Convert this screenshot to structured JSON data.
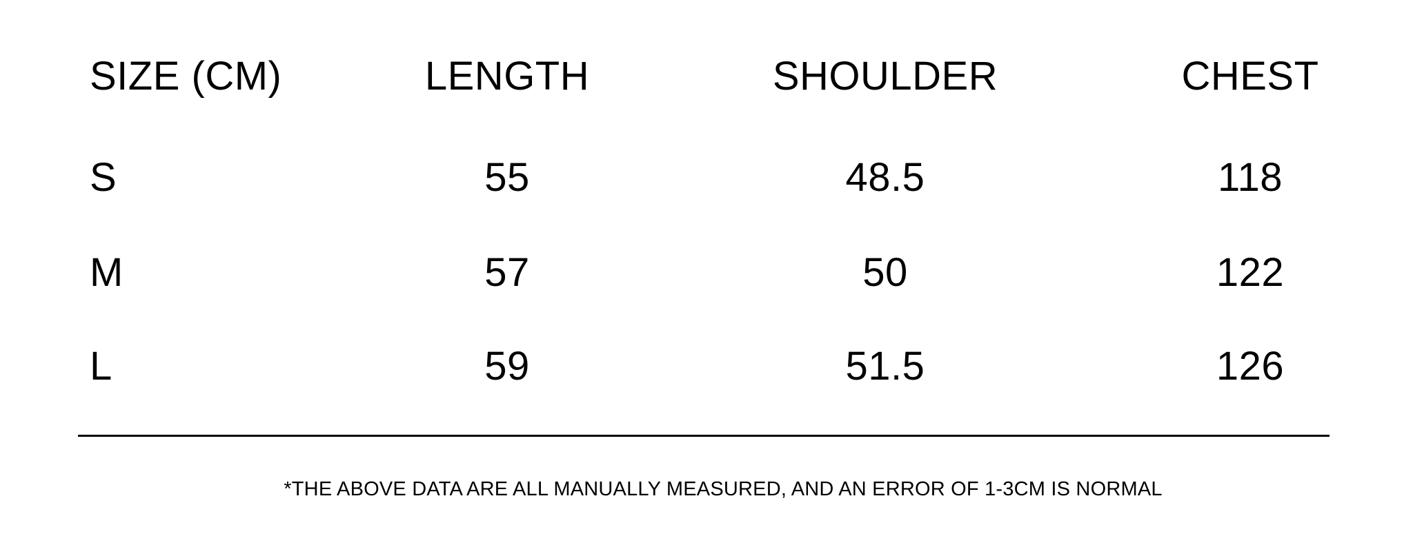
{
  "colors": {
    "background": "#ffffff",
    "text": "#000000",
    "rule": "#000000"
  },
  "chart_data": {
    "type": "table",
    "title": "",
    "unit": "CM",
    "columns": [
      "SIZE (CM)",
      "LENGTH",
      "SHOULDER",
      "CHEST"
    ],
    "rows": [
      [
        "S",
        "55",
        "48.5",
        "118"
      ],
      [
        "M",
        "57",
        "50",
        "122"
      ],
      [
        "L",
        "59",
        "51.5",
        "126"
      ]
    ],
    "footnote": "*THE ABOVE DATA ARE ALL MANUALLY MEASURED, AND AN ERROR OF 1-3CM IS NORMAL"
  }
}
